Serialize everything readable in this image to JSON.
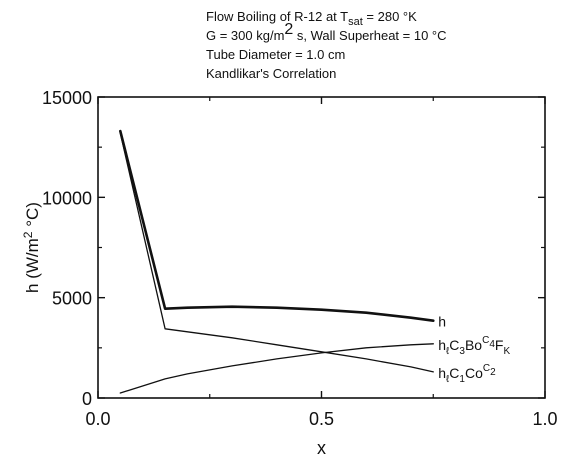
{
  "chart_data": {
    "type": "line",
    "title_lines": [
      {
        "main": "Flow Boiling of R-12 at T",
        "sub": "sat",
        "rest": "  = 280 °K"
      },
      {
        "main": "G = 300 kg/m",
        "sup": "2",
        "rest": " s, Wall Superheat = 10 °C"
      },
      {
        "main": "Tube Diameter = 1.0 cm"
      },
      {
        "main": "Kandlikar's Correlation"
      }
    ],
    "xlabel": "x",
    "ylabel": {
      "main": "h    (W/m",
      "sup": "2",
      "rest": " °C)"
    },
    "xlim": [
      0,
      1
    ],
    "ylim": [
      0,
      15000
    ],
    "x_ticks": [
      {
        "value": 0,
        "label": "0.0"
      },
      {
        "value": 0.5,
        "label": "0.5"
      },
      {
        "value": 1,
        "label": "1.0"
      }
    ],
    "y_ticks": [
      {
        "value": 0,
        "label": "0"
      },
      {
        "value": 5000,
        "label": "5000"
      },
      {
        "value": 10000,
        "label": "10000"
      },
      {
        "value": 15000,
        "label": "15000"
      }
    ],
    "grid": false,
    "series": [
      {
        "name": "h",
        "label_parts": [
          {
            "t": "h"
          }
        ],
        "stroke_weight": "bold",
        "x": [
          0.05,
          0.15,
          0.2,
          0.3,
          0.4,
          0.5,
          0.6,
          0.7,
          0.75
        ],
        "y": [
          13300,
          4450,
          4500,
          4550,
          4500,
          4400,
          4250,
          4000,
          3850
        ]
      },
      {
        "name": "hℓC1Co^C2",
        "label_parts": [
          {
            "t": "h"
          },
          {
            "t": "ℓ",
            "s": "sub"
          },
          {
            "t": "C"
          },
          {
            "t": "1",
            "s": "sub"
          },
          {
            "t": "Co"
          },
          {
            "t": "C",
            "s": "sup"
          },
          {
            "t": "2",
            "s": "supsub"
          }
        ],
        "stroke_weight": "normal",
        "x": [
          0.05,
          0.15,
          0.2,
          0.3,
          0.4,
          0.5,
          0.6,
          0.7,
          0.75
        ],
        "y": [
          13200,
          3450,
          3300,
          3000,
          2650,
          2300,
          1950,
          1550,
          1300
        ]
      },
      {
        "name": "hℓC3Bo^C4FK",
        "label_parts": [
          {
            "t": "h"
          },
          {
            "t": "ℓ",
            "s": "sub"
          },
          {
            "t": "C"
          },
          {
            "t": "3",
            "s": "sub"
          },
          {
            "t": "Bo"
          },
          {
            "t": "C",
            "s": "sup"
          },
          {
            "t": "4",
            "s": "supsub"
          },
          {
            "t": "F"
          },
          {
            "t": "K",
            "s": "sub"
          }
        ],
        "stroke_weight": "normal",
        "x": [
          0.05,
          0.15,
          0.2,
          0.3,
          0.4,
          0.5,
          0.6,
          0.7,
          0.75
        ],
        "y": [
          250,
          950,
          1200,
          1600,
          1950,
          2250,
          2500,
          2650,
          2700
        ]
      }
    ]
  }
}
